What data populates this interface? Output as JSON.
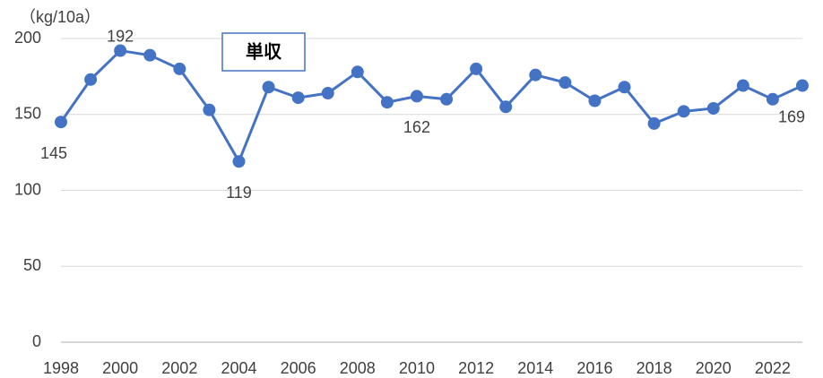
{
  "chart_data": {
    "type": "line",
    "y_label": "（kg/10a）",
    "x": [
      1998,
      1999,
      2000,
      2001,
      2002,
      2003,
      2004,
      2005,
      2006,
      2007,
      2008,
      2009,
      2010,
      2011,
      2012,
      2013,
      2014,
      2015,
      2016,
      2017,
      2018,
      2019,
      2020,
      2021,
      2022,
      2023
    ],
    "series": [
      {
        "name": "単収",
        "color": "#4472c4",
        "values": [
          145,
          173,
          192,
          189,
          180,
          153,
          119,
          168,
          161,
          164,
          178,
          158,
          162,
          160,
          180,
          155,
          176,
          171,
          159,
          168,
          144,
          152,
          154,
          169,
          160,
          169
        ],
        "value_labels": [
          "145",
          null,
          "192",
          null,
          null,
          null,
          "119",
          null,
          null,
          null,
          null,
          null,
          "162",
          null,
          null,
          null,
          null,
          null,
          null,
          null,
          null,
          null,
          null,
          null,
          null,
          "169"
        ]
      }
    ],
    "xlim": [
      1998,
      2023
    ],
    "xticks": [
      1998,
      2000,
      2002,
      2004,
      2006,
      2008,
      2010,
      2012,
      2014,
      2016,
      2018,
      2020,
      2022
    ],
    "ylim": [
      0,
      200
    ],
    "yticks": [
      0,
      50,
      100,
      150,
      200
    ],
    "grid": true
  }
}
